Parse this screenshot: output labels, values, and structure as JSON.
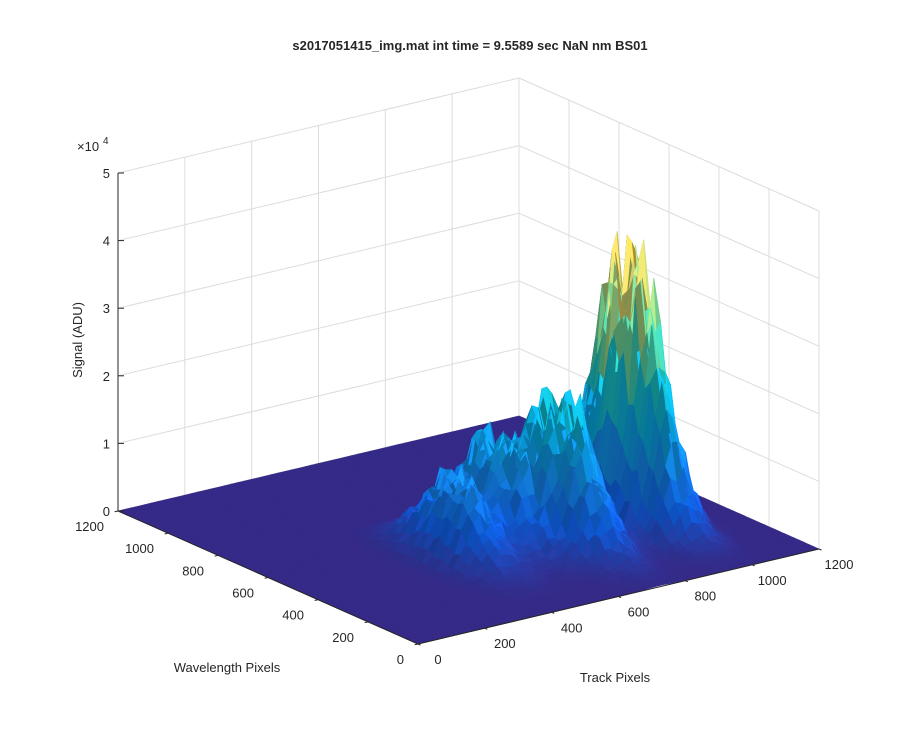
{
  "chart_data": {
    "type": "surface",
    "title": "s2017051415_img.mat int time = 9.5589 sec  NaN nm BS01",
    "xlabel": "Track Pixels",
    "ylabel": "Wavelength Pixels",
    "zlabel": "Signal (ADU)",
    "xlim": [
      0,
      1200
    ],
    "ylim": [
      0,
      1200
    ],
    "zlim": [
      0,
      50000
    ],
    "x_ticks": [
      "0",
      "200",
      "400",
      "600",
      "800",
      "1000",
      "1200"
    ],
    "y_ticks": [
      "0",
      "200",
      "400",
      "600",
      "800",
      "1000",
      "1200"
    ],
    "z_ticks": [
      "0",
      "1",
      "2",
      "3",
      "4",
      "5"
    ],
    "z_exponent": {
      "base": "×10",
      "power": "4"
    },
    "colormap": "parula",
    "grid": true,
    "peaks": [
      {
        "x": 450,
        "y": 450,
        "z": 12000
      },
      {
        "x": 600,
        "y": 500,
        "z": 15000
      },
      {
        "x": 720,
        "y": 380,
        "z": 22000
      },
      {
        "x": 950,
        "y": 420,
        "z": 42000
      }
    ],
    "baseline": 0
  }
}
